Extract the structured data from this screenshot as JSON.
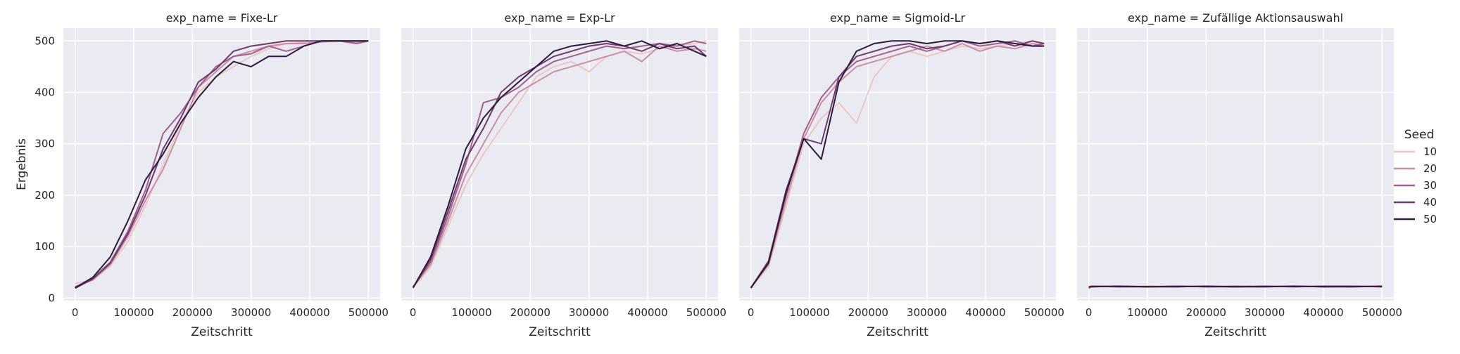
{
  "chart_data": {
    "type": "line",
    "facet_label": "exp_name",
    "xlabel": "Zeitschritt",
    "ylabel": "Ergebnis",
    "xlim": [
      -20000,
      520000
    ],
    "ylim": [
      -5,
      525
    ],
    "xticks": [
      0,
      100000,
      200000,
      300000,
      400000,
      500000
    ],
    "yticks": [
      0,
      100,
      200,
      300,
      400,
      500
    ],
    "grid": true,
    "legend": {
      "title": "Seed",
      "placement": "right",
      "entries": [
        "10",
        "20",
        "30",
        "40",
        "50"
      ]
    },
    "series_colors": {
      "10": "#ecc8c4",
      "20": "#cc8ea4",
      "30": "#a0628b",
      "40": "#6f3a6f",
      "50": "#2c1b3b"
    },
    "panels": [
      {
        "title": "exp_name = Fixe-Lr",
        "series": [
          {
            "name": "10",
            "x": [
              0,
              30000,
              60000,
              90000,
              120000,
              150000,
              180000,
              210000,
              240000,
              270000,
              300000,
              330000,
              360000,
              390000,
              420000,
              450000,
              480000,
              500000
            ],
            "y": [
              28,
              36,
              62,
              110,
              180,
              260,
              340,
              400,
              430,
              450,
              470,
              485,
              495,
              498,
              498,
              499,
              500,
              500
            ]
          },
          {
            "name": "20",
            "x": [
              0,
              30000,
              60000,
              90000,
              120000,
              150000,
              180000,
              210000,
              240000,
              270000,
              300000,
              330000,
              360000,
              390000,
              420000,
              450000,
              480000,
              500000
            ],
            "y": [
              22,
              35,
              65,
              120,
              190,
              250,
              330,
              410,
              440,
              470,
              480,
              490,
              495,
              495,
              498,
              500,
              498,
              500
            ]
          },
          {
            "name": "30",
            "x": [
              0,
              30000,
              60000,
              90000,
              120000,
              150000,
              180000,
              210000,
              240000,
              270000,
              300000,
              330000,
              360000,
              390000,
              420000,
              450000,
              480000,
              500000
            ],
            "y": [
              21,
              38,
              70,
              130,
              210,
              320,
              360,
              410,
              450,
              470,
              475,
              490,
              480,
              490,
              500,
              500,
              495,
              500
            ]
          },
          {
            "name": "40",
            "x": [
              0,
              30000,
              60000,
              90000,
              120000,
              150000,
              180000,
              210000,
              240000,
              270000,
              300000,
              330000,
              360000,
              390000,
              420000,
              450000,
              480000,
              500000
            ],
            "y": [
              19,
              37,
              68,
              125,
              200,
              290,
              350,
              420,
              445,
              480,
              490,
              495,
              500,
              500,
              500,
              500,
              500,
              500
            ]
          },
          {
            "name": "50",
            "x": [
              0,
              30000,
              60000,
              90000,
              120000,
              150000,
              180000,
              210000,
              240000,
              270000,
              300000,
              330000,
              360000,
              390000,
              420000,
              450000,
              480000,
              500000
            ],
            "y": [
              20,
              40,
              80,
              150,
              230,
              280,
              340,
              390,
              430,
              460,
              450,
              470,
              470,
              490,
              500,
              500,
              500,
              500
            ]
          }
        ]
      },
      {
        "title": "exp_name = Exp-Lr",
        "series": [
          {
            "name": "10",
            "x": [
              0,
              30000,
              60000,
              90000,
              120000,
              150000,
              180000,
              210000,
              240000,
              270000,
              300000,
              330000,
              360000,
              390000,
              420000,
              450000,
              480000,
              500000
            ],
            "y": [
              20,
              60,
              140,
              220,
              280,
              330,
              380,
              430,
              450,
              460,
              440,
              470,
              480,
              475,
              485,
              490,
              495,
              500
            ]
          },
          {
            "name": "20",
            "x": [
              0,
              30000,
              60000,
              90000,
              120000,
              150000,
              180000,
              210000,
              240000,
              270000,
              300000,
              330000,
              360000,
              390000,
              420000,
              450000,
              480000,
              500000
            ],
            "y": [
              22,
              65,
              150,
              240,
              300,
              360,
              400,
              420,
              440,
              450,
              460,
              470,
              480,
              460,
              490,
              480,
              485,
              480
            ]
          },
          {
            "name": "30",
            "x": [
              0,
              30000,
              60000,
              90000,
              120000,
              150000,
              180000,
              210000,
              240000,
              270000,
              300000,
              330000,
              360000,
              390000,
              420000,
              450000,
              480000,
              500000
            ],
            "y": [
              21,
              70,
              160,
              260,
              380,
              390,
              410,
              440,
              460,
              470,
              480,
              490,
              485,
              490,
              495,
              490,
              500,
              495
            ]
          },
          {
            "name": "40",
            "x": [
              0,
              30000,
              60000,
              90000,
              120000,
              150000,
              180000,
              210000,
              240000,
              270000,
              300000,
              330000,
              360000,
              390000,
              420000,
              450000,
              480000,
              500000
            ],
            "y": [
              20,
              75,
              170,
              270,
              330,
              400,
              430,
              450,
              470,
              480,
              490,
              495,
              490,
              480,
              495,
              485,
              490,
              470
            ]
          },
          {
            "name": "50",
            "x": [
              0,
              30000,
              60000,
              90000,
              120000,
              150000,
              180000,
              210000,
              240000,
              270000,
              300000,
              330000,
              360000,
              390000,
              420000,
              450000,
              480000,
              500000
            ],
            "y": [
              20,
              80,
              180,
              290,
              350,
              390,
              420,
              450,
              480,
              490,
              495,
              500,
              490,
              500,
              485,
              495,
              480,
              470
            ]
          }
        ]
      },
      {
        "title": "exp_name = Sigmoid-Lr",
        "series": [
          {
            "name": "10",
            "x": [
              0,
              30000,
              60000,
              90000,
              120000,
              150000,
              180000,
              210000,
              240000,
              270000,
              300000,
              330000,
              360000,
              390000,
              420000,
              450000,
              480000,
              500000
            ],
            "y": [
              20,
              60,
              180,
              300,
              350,
              380,
              340,
              430,
              470,
              480,
              470,
              480,
              490,
              485,
              490,
              495,
              500,
              490
            ]
          },
          {
            "name": "20",
            "x": [
              0,
              30000,
              60000,
              90000,
              120000,
              150000,
              180000,
              210000,
              240000,
              270000,
              300000,
              330000,
              360000,
              390000,
              420000,
              450000,
              480000,
              500000
            ],
            "y": [
              21,
              65,
              190,
              310,
              380,
              420,
              450,
              460,
              470,
              480,
              490,
              480,
              495,
              480,
              490,
              485,
              495,
              490
            ]
          },
          {
            "name": "30",
            "x": [
              0,
              30000,
              60000,
              90000,
              120000,
              150000,
              180000,
              210000,
              240000,
              270000,
              300000,
              330000,
              360000,
              390000,
              420000,
              450000,
              480000,
              500000
            ],
            "y": [
              19,
              70,
              200,
              320,
              390,
              430,
              460,
              470,
              480,
              490,
              480,
              490,
              500,
              490,
              495,
              500,
              490,
              495
            ]
          },
          {
            "name": "40",
            "x": [
              0,
              30000,
              60000,
              90000,
              120000,
              150000,
              180000,
              210000,
              240000,
              270000,
              300000,
              330000,
              360000,
              390000,
              420000,
              450000,
              480000,
              500000
            ],
            "y": [
              20,
              72,
              210,
              310,
              300,
              430,
              470,
              480,
              490,
              495,
              485,
              490,
              500,
              495,
              500,
              490,
              500,
              495
            ]
          },
          {
            "name": "50",
            "x": [
              0,
              30000,
              60000,
              90000,
              120000,
              150000,
              180000,
              210000,
              240000,
              270000,
              300000,
              330000,
              360000,
              390000,
              420000,
              450000,
              480000,
              500000
            ],
            "y": [
              20,
              68,
              205,
              310,
              270,
              420,
              480,
              495,
              500,
              500,
              495,
              500,
              500,
              495,
              500,
              495,
              490,
              490
            ]
          }
        ]
      },
      {
        "title": "exp_name = Zufällige Aktionsauswahl",
        "series": [
          {
            "name": "10",
            "x": [
              0,
              5000,
              50000,
              100000,
              150000,
              200000,
              250000,
              300000,
              350000,
              400000,
              450000,
              500000
            ],
            "y": [
              18,
              23,
              23,
              22,
              23,
              22,
              23,
              22,
              23,
              22,
              23,
              22
            ]
          },
          {
            "name": "20",
            "x": [
              0,
              5000,
              50000,
              100000,
              150000,
              200000,
              250000,
              300000,
              350000,
              400000,
              450000,
              500000
            ],
            "y": [
              19,
              23,
              22,
              23,
              22,
              23,
              22,
              23,
              22,
              23,
              22,
              23
            ]
          },
          {
            "name": "30",
            "x": [
              0,
              5000,
              50000,
              100000,
              150000,
              200000,
              250000,
              300000,
              350000,
              400000,
              450000,
              500000
            ],
            "y": [
              20,
              22,
              23,
              22,
              23,
              22,
              23,
              22,
              23,
              22,
              23,
              22
            ]
          },
          {
            "name": "40",
            "x": [
              0,
              5000,
              50000,
              100000,
              150000,
              200000,
              250000,
              300000,
              350000,
              400000,
              450000,
              500000
            ],
            "y": [
              21,
              23,
              22,
              22,
              23,
              22,
              22,
              23,
              22,
              23,
              23,
              22
            ]
          },
          {
            "name": "50",
            "x": [
              0,
              5000,
              50000,
              100000,
              150000,
              200000,
              250000,
              300000,
              350000,
              400000,
              450000,
              500000
            ],
            "y": [
              22,
              22,
              23,
              22,
              22,
              23,
              22,
              22,
              23,
              22,
              22,
              23
            ]
          }
        ]
      }
    ]
  }
}
